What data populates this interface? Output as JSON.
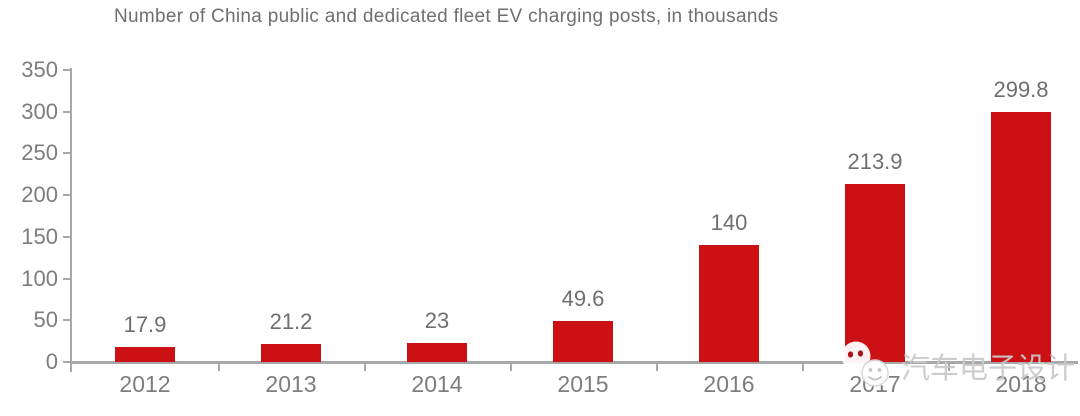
{
  "chart_data": {
    "type": "bar",
    "title": "Number of China public and dedicated fleet EV charging posts, in thousands",
    "categories": [
      "2012",
      "2013",
      "2014",
      "2015",
      "2016",
      "2017",
      "2018"
    ],
    "values": [
      17.9,
      21.2,
      23,
      49.6,
      140,
      213.9,
      299.8
    ],
    "value_labels": [
      "17.9",
      "21.2",
      "23",
      "49.6",
      "140",
      "213.9",
      "299.8"
    ],
    "xlabel": "",
    "ylabel": "",
    "ylim": [
      0,
      350
    ],
    "yticks": [
      0,
      50,
      100,
      150,
      200,
      250,
      300,
      350
    ],
    "grid": false,
    "legend": "none",
    "bar_color": "#cc1114",
    "axis_color": "#a8a8a8",
    "label_color": "#7d7d7d",
    "title_color": "#6f6f6f"
  },
  "watermark": {
    "text": "汽车电子设计",
    "icon": "wechat-icon",
    "color": "#c9c9c9"
  }
}
